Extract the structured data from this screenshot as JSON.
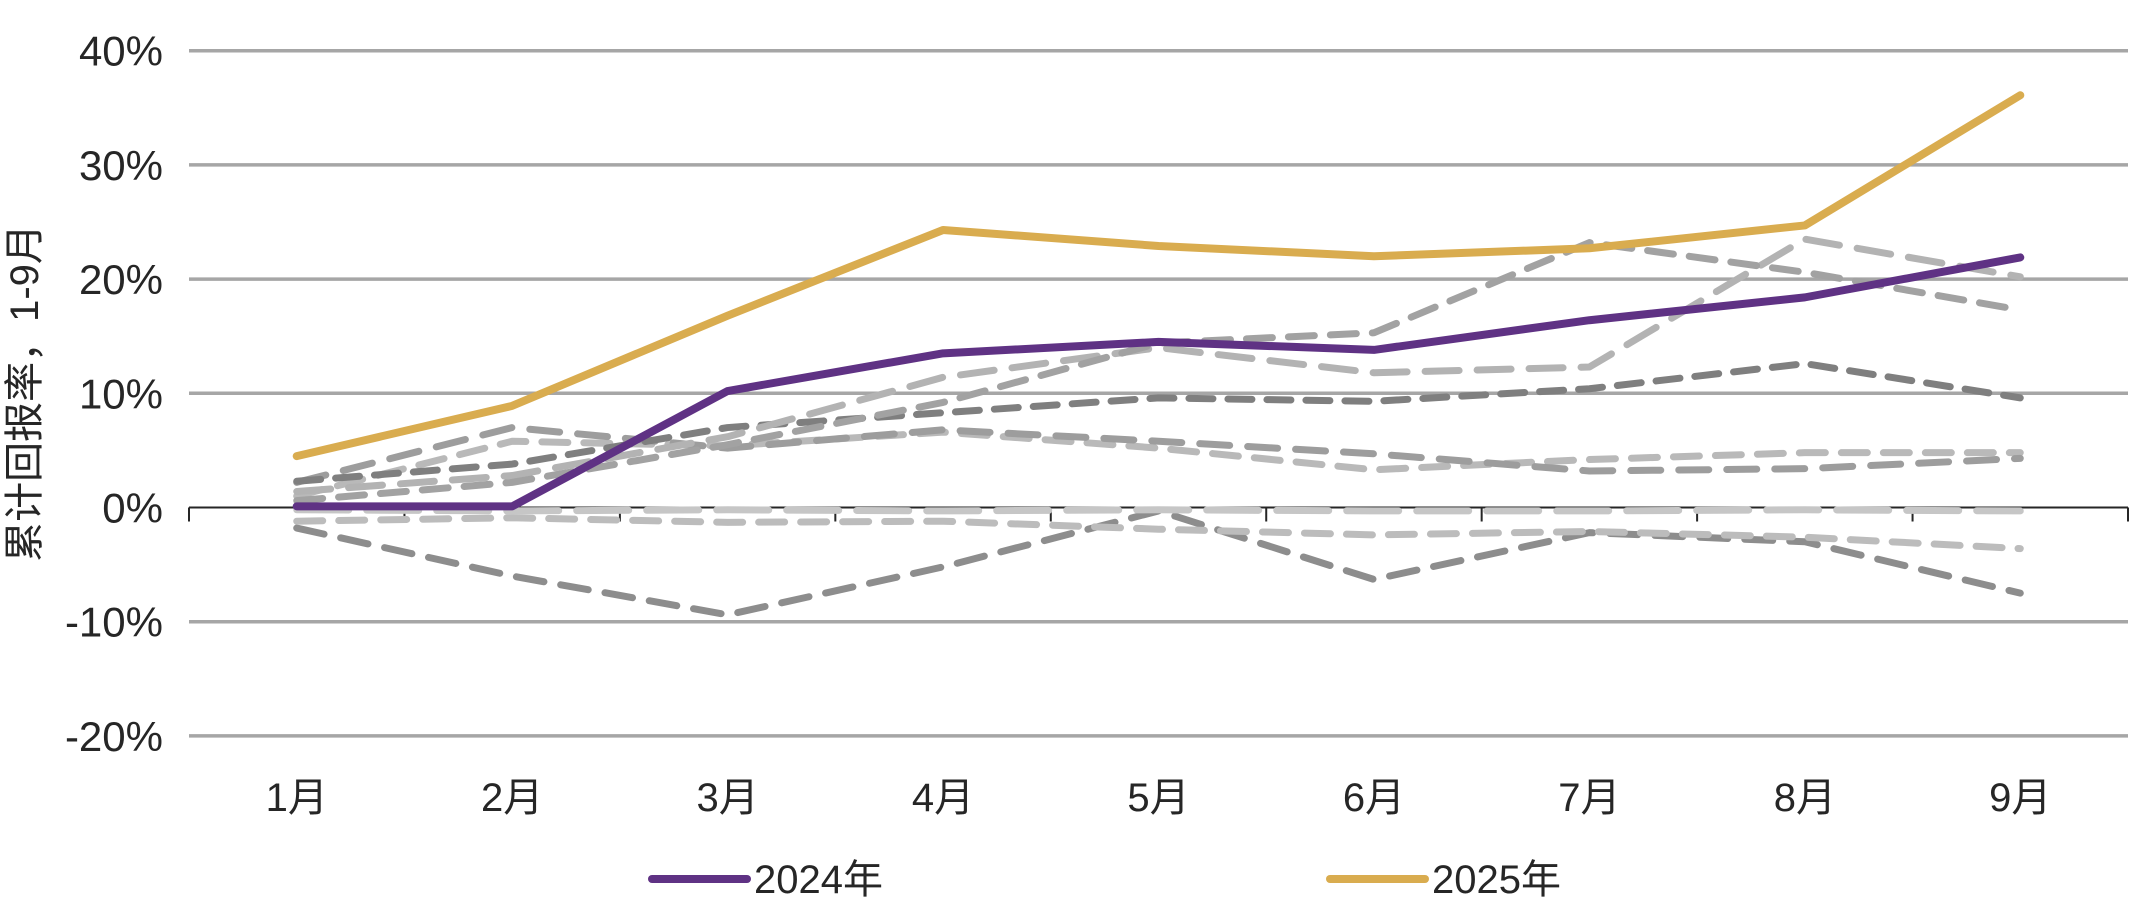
{
  "chart_data": {
    "type": "line",
    "title": "",
    "ylabel": "累计回报率，1-9月",
    "xlabel": "",
    "categories": [
      "1月",
      "2月",
      "3月",
      "4月",
      "5月",
      "6月",
      "7月",
      "8月",
      "9月"
    ],
    "ylim": [
      -24,
      43
    ],
    "ytick_values": [
      40,
      30,
      20,
      10,
      0,
      -10,
      -20
    ],
    "ytick_labels": [
      "40%",
      "30%",
      "20%",
      "10%",
      "0%",
      "-10%",
      "-20%"
    ],
    "grid": "horizontal-only",
    "legend_position": "bottom",
    "series": [
      {
        "name": "2024年",
        "color": "#5F3284",
        "style": "solid",
        "width": 8,
        "values": [
          0.1,
          0.1,
          10.2,
          13.5,
          14.5,
          13.8,
          16.4,
          18.4,
          21.9
        ]
      },
      {
        "name": "2025年",
        "color": "#D9AC4F",
        "style": "solid",
        "width": 8,
        "values": [
          4.5,
          8.9,
          16.8,
          24.3,
          22.9,
          22.0,
          22.7,
          24.7,
          36.1
        ]
      }
    ],
    "historical_series": [
      {
        "id": "h1",
        "color": "#b9b9b9",
        "dash": "26 16",
        "width": 7,
        "values": [
          1.0,
          5.8,
          5.4,
          6.6,
          5.2,
          3.3,
          4.2,
          4.8,
          4.8
        ]
      },
      {
        "id": "h2",
        "color": "#9d9d9d",
        "dash": "30 18",
        "width": 7,
        "values": [
          2.2,
          7.0,
          5.2,
          6.8,
          5.8,
          4.7,
          3.2,
          3.4,
          4.3
        ]
      },
      {
        "id": "h3",
        "color": "#7f7f7f",
        "dash": "24 15",
        "width": 7,
        "values": [
          2.3,
          3.8,
          7.0,
          8.3,
          9.6,
          9.3,
          10.4,
          12.6,
          9.6
        ]
      },
      {
        "id": "h4",
        "color": "#b3b3b3",
        "dash": "34 18",
        "width": 7,
        "values": [
          1.4,
          2.8,
          6.2,
          11.4,
          14.0,
          11.8,
          12.3,
          23.5,
          20.2
        ]
      },
      {
        "id": "h5",
        "color": "#a2a2a2",
        "dash": "26 16",
        "width": 7,
        "values": [
          0.6,
          2.2,
          5.5,
          9.2,
          14.4,
          15.3,
          23.2,
          20.6,
          17.3
        ]
      },
      {
        "id": "h6",
        "color": "#8d8d8d",
        "dash": "28 17",
        "width": 7,
        "values": [
          -1.8,
          -6.0,
          -9.4,
          -5.2,
          -0.3,
          -6.3,
          -2.2,
          -3.0,
          -7.5
        ]
      },
      {
        "id": "h7",
        "color": "#bcbcbc",
        "dash": "26 16",
        "width": 7,
        "values": [
          -1.2,
          -0.9,
          -1.3,
          -1.2,
          -1.9,
          -2.4,
          -2.1,
          -2.6,
          -3.6
        ]
      },
      {
        "id": "h8",
        "color": "#c6c6c6",
        "dash": "52 18",
        "width": 7,
        "values": [
          -0.2,
          -0.3,
          -0.2,
          -0.3,
          -0.2,
          -0.3,
          -0.3,
          -0.2,
          -0.3
        ]
      }
    ],
    "colors": {
      "gridline": "#a6a6a6",
      "axis": "#262626",
      "text": "#262626",
      "background": "#ffffff"
    }
  },
  "legend": {
    "item_2024": "2024年",
    "item_2025": "2025年"
  }
}
